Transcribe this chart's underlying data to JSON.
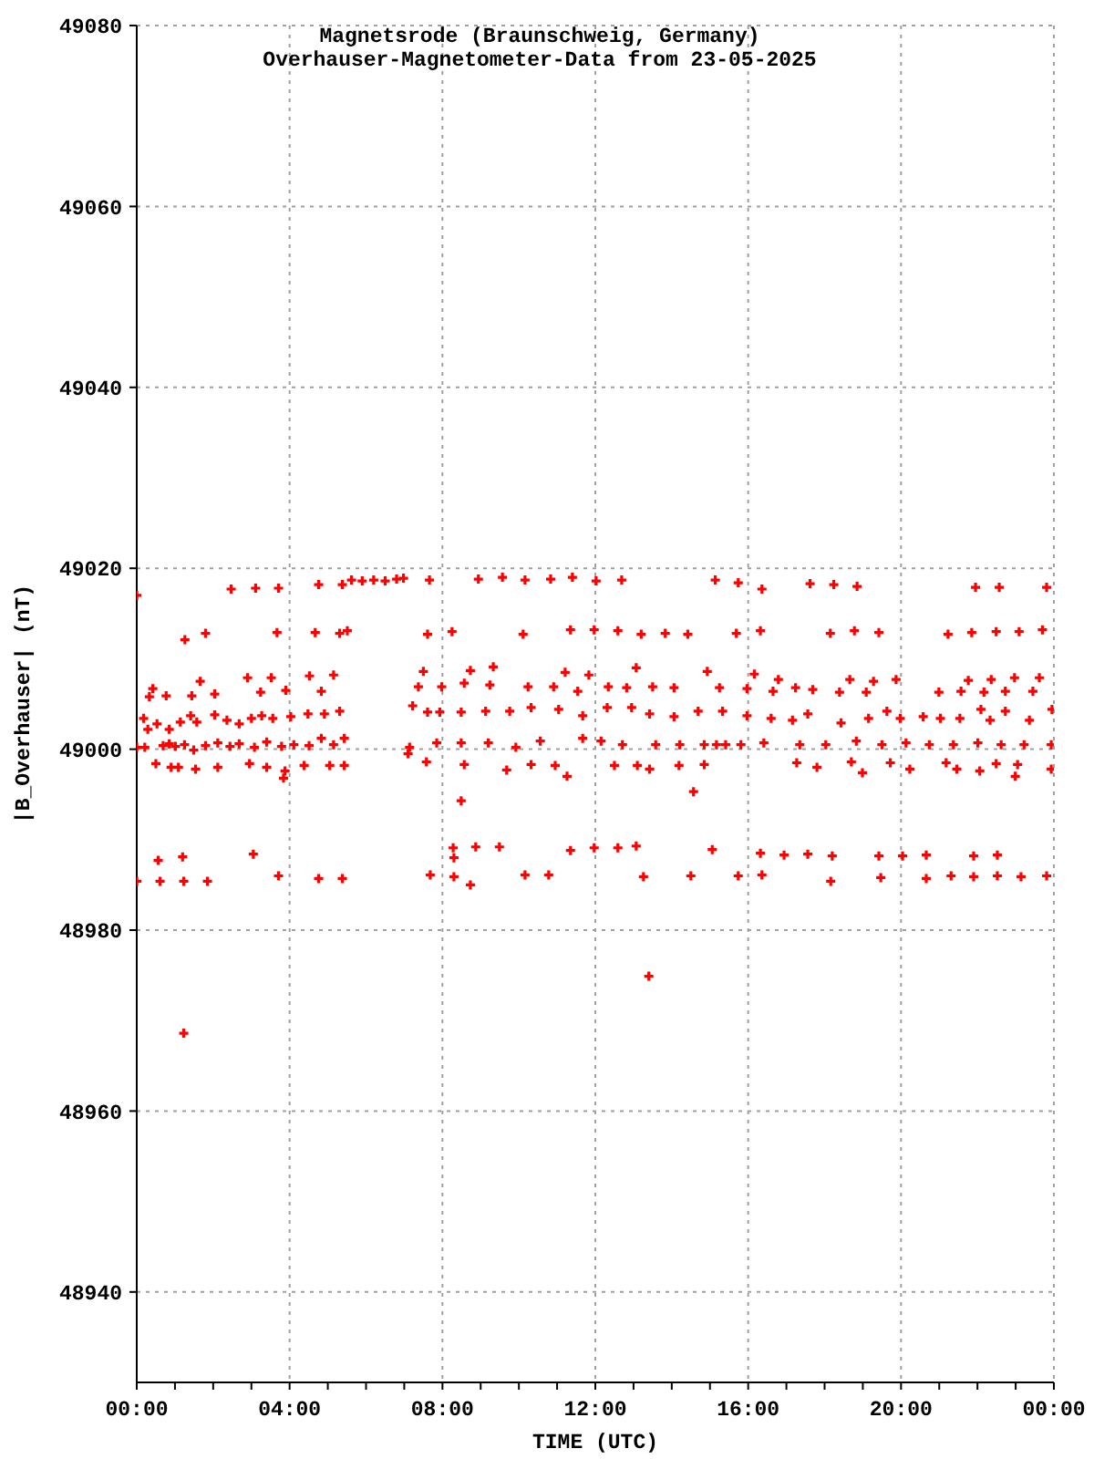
{
  "chart_data": {
    "type": "scatter",
    "title": "Magnetsrode (Braunschweig, Germany)",
    "subtitle": "Overhauser-Magnetometer-Data from 23-05-2025",
    "xlabel": "TIME (UTC)",
    "ylabel": "|B_Overhauser| (nT)",
    "x": [
      0,
      0,
      0,
      0.56,
      0.61,
      1.2,
      1.23,
      1.85,
      3.05,
      3.71,
      4.76,
      5.38,
      2.47,
      3.11,
      3.71,
      4.76,
      5.38,
      5.62,
      5.9,
      6.2,
      6.5,
      6.8,
      1.26,
      1.8,
      3.67,
      4.67,
      5.31,
      5.51,
      0.33,
      0.42,
      0.77,
      1.44,
      1.66,
      2.04,
      2.9,
      3.24,
      3.52,
      3.9,
      4.52,
      4.83,
      5.15,
      0.18,
      0.29,
      0.53,
      0.85,
      1.14,
      1.41,
      1.57,
      2.04,
      2.36,
      2.68,
      3.0,
      3.27,
      3.56,
      4.03,
      4.48,
      4.91,
      5.31,
      5.43,
      0.21,
      0.69,
      0.85,
      1.01,
      1.25,
      1.49,
      1.8,
      2.12,
      2.44,
      2.68,
      3.08,
      3.4,
      3.79,
      4.11,
      4.51,
      4.83,
      5.15,
      0.5,
      0.9,
      1.09,
      1.54,
      2.12,
      2.95,
      3.4,
      3.88,
      4.38,
      5.05,
      5.43,
      3.84,
      1.23,
      13.4,
      7.1,
      6.98,
      7.66,
      8.94,
      9.57,
      10.16,
      10.83,
      11.4,
      12.02,
      12.69,
      15.14,
      7.61,
      8.25,
      10.11,
      11.35,
      11.97,
      12.59,
      13.2,
      13.83,
      14.42,
      7.5,
      7.37,
      7.98,
      8.57,
      8.73,
      9.33,
      9.24,
      10.24,
      10.91,
      11.21,
      11.54,
      11.83,
      12.34,
      13.07,
      12.82,
      13.5,
      14.06,
      14.93,
      15.25,
      7.22,
      7.61,
      7.93,
      8.49,
      9.13,
      9.76,
      10.32,
      11.04,
      11.67,
      12.31,
      12.95,
      13.42,
      14.06,
      14.69,
      15.33,
      7.14,
      7.85,
      8.49,
      9.2,
      9.92,
      10.56,
      11.67,
      12.15,
      12.71,
      13.58,
      14.21,
      14.85,
      15.41,
      7.58,
      8.57,
      9.68,
      10.32,
      10.95,
      11.26,
      12.5,
      13.1,
      13.42,
      14.19,
      14.85,
      14.57,
      8.49,
      8.28,
      8.87,
      9.49,
      11.35,
      11.97,
      12.59,
      13.07,
      15.06,
      8.3,
      7.68,
      8.3,
      8.73,
      10.16,
      10.78,
      13.26,
      14.5,
      15.74,
      16.36,
      17.62,
      18.24,
      18.85,
      21.95,
      22.57,
      23.81,
      15.69,
      16.32,
      18.15,
      18.78,
      19.42,
      21.23,
      21.85,
      22.49,
      23.09,
      23.7,
      16.16,
      15.97,
      16.65,
      16.79,
      17.24,
      17.69,
      18.39,
      18.66,
      19.09,
      19.28,
      19.87,
      20.99,
      21.57,
      21.76,
      22.17,
      22.36,
      22.73,
      22.97,
      23.45,
      23.62,
      15.97,
      16.6,
      17.16,
      17.56,
      18.43,
      19.15,
      19.63,
      19.98,
      20.58,
      21.03,
      21.54,
      22.09,
      22.33,
      22.73,
      23.36,
      23.95,
      15.17,
      15.81,
      16.41,
      17.35,
      18.03,
      18.83,
      19.5,
      20.13,
      20.74,
      21.37,
      22.01,
      22.62,
      23.22,
      23.93,
      17.27,
      17.8,
      18.7,
      18.99,
      19.72,
      20.23,
      21.18,
      21.46,
      22.06,
      22.49,
      22.99,
      23.05,
      23.93,
      16.32,
      16.94,
      17.56,
      18.2,
      19.42,
      20.04,
      20.66,
      21.9,
      22.52,
      15.74,
      16.36,
      18.16,
      19.47,
      20.66,
      21.31,
      21.9,
      22.52,
      23.14,
      23.81
    ],
    "values": [
      49017.0,
      48985.4,
      49000.2,
      48987.7,
      48985.4,
      48988.1,
      48985.4,
      48985.4,
      48988.4,
      48986.0,
      48985.7,
      48985.7,
      49017.7,
      49017.8,
      49017.8,
      49018.2,
      49018.2,
      49018.7,
      49018.6,
      49018.7,
      49018.6,
      49018.8,
      49012.1,
      49012.8,
      49012.9,
      49012.9,
      49012.8,
      49013.1,
      49005.8,
      49006.7,
      49005.9,
      49005.9,
      49007.5,
      49006.1,
      49007.9,
      49006.3,
      49007.9,
      49006.5,
      49008.1,
      49006.4,
      49008.2,
      49003.4,
      49002.2,
      49002.8,
      49002.2,
      49003.0,
      49003.7,
      49003.0,
      49003.8,
      49003.2,
      49002.8,
      49003.4,
      49003.7,
      49003.4,
      49003.6,
      49003.9,
      49003.9,
      49004.2,
      49001.2,
      49000.2,
      49000.4,
      49000.6,
      49000.3,
      49000.5,
      48999.9,
      49000.4,
      49000.7,
      49000.3,
      49000.6,
      49000.2,
      49000.8,
      49000.3,
      49000.5,
      49000.4,
      49001.2,
      49000.5,
      48998.4,
      48998.0,
      48998.0,
      48997.8,
      48998.0,
      48998.4,
      48998.0,
      48997.6,
      48998.2,
      48998.2,
      48998.2,
      48996.8,
      48968.6,
      48974.9,
      48999.5,
      49018.9,
      49018.7,
      49018.8,
      49019.0,
      49018.7,
      49018.8,
      49019.0,
      49018.6,
      49018.7,
      49018.7,
      49012.7,
      49013.0,
      49012.7,
      49013.2,
      49013.2,
      49013.1,
      49012.7,
      49012.8,
      49012.7,
      49008.6,
      49006.9,
      49006.9,
      49007.3,
      49008.7,
      49009.1,
      49007.1,
      49006.9,
      49006.9,
      49008.5,
      49006.4,
      49008.2,
      49006.9,
      49009.0,
      49006.8,
      49006.9,
      49006.8,
      49008.6,
      49006.8,
      49004.8,
      49004.1,
      49004.1,
      49004.1,
      49004.2,
      49004.2,
      49004.6,
      49004.4,
      49003.7,
      49004.6,
      49004.6,
      49003.9,
      49003.6,
      49004.2,
      49004.2,
      49000.2,
      49000.7,
      49000.7,
      49000.7,
      49000.2,
      49000.9,
      49001.2,
      49000.9,
      49000.5,
      49000.5,
      49000.5,
      49000.5,
      49000.5,
      48998.6,
      48998.3,
      48997.7,
      48998.3,
      48998.2,
      48997.0,
      48998.2,
      48998.2,
      48997.8,
      48998.2,
      48998.3,
      48995.3,
      48994.3,
      48989.1,
      48989.2,
      48989.2,
      48988.8,
      48989.1,
      48989.1,
      48989.3,
      48988.9,
      48988.0,
      48986.1,
      48985.9,
      48985.0,
      48986.1,
      48986.1,
      48985.9,
      48986.0,
      49018.4,
      49017.7,
      49018.3,
      49018.2,
      49018.0,
      49017.9,
      49017.9,
      49017.9,
      49012.8,
      49013.1,
      49012.8,
      49013.1,
      49012.9,
      49012.7,
      49012.9,
      49013.0,
      49013.0,
      49013.2,
      49008.3,
      49006.7,
      49006.4,
      49007.7,
      49006.8,
      49006.6,
      49006.3,
      49007.7,
      49006.3,
      49007.5,
      49007.7,
      49006.3,
      49006.4,
      49007.6,
      49006.3,
      49007.7,
      49006.4,
      49007.9,
      49006.4,
      49007.9,
      49003.7,
      49003.4,
      49003.2,
      49003.9,
      49002.9,
      49003.4,
      49004.2,
      49003.4,
      49003.6,
      49003.4,
      49003.4,
      49004.4,
      49003.2,
      49004.2,
      49003.2,
      49004.4,
      49000.5,
      49000.5,
      49000.7,
      49000.5,
      49000.5,
      49000.9,
      49000.5,
      49000.7,
      49000.5,
      49000.5,
      49000.7,
      49000.5,
      49000.5,
      49000.5,
      48998.5,
      48998.0,
      48998.6,
      48997.4,
      48998.5,
      48997.8,
      48998.5,
      48997.8,
      48997.6,
      48998.4,
      48997.0,
      48998.3,
      48997.8,
      48988.5,
      48988.3,
      48988.4,
      48988.2,
      48988.2,
      48988.2,
      48988.3,
      48988.2,
      48988.3,
      48986.0,
      48986.1,
      48985.4,
      48985.8,
      48985.7,
      48986.0,
      48985.9,
      48986.0,
      48985.9,
      48986.0
    ],
    "color": "#ff0000",
    "marker": "cross",
    "xlim": [
      0,
      24
    ],
    "xticks": [
      {
        "value": 0,
        "label": "00:00"
      },
      {
        "value": 1,
        "label": null
      },
      {
        "value": 2,
        "label": null
      },
      {
        "value": 3,
        "label": null
      },
      {
        "value": 4,
        "label": "04:00"
      },
      {
        "value": 5,
        "label": null
      },
      {
        "value": 6,
        "label": null
      },
      {
        "value": 7,
        "label": null
      },
      {
        "value": 8,
        "label": "08:00"
      },
      {
        "value": 9,
        "label": null
      },
      {
        "value": 10,
        "label": null
      },
      {
        "value": 11,
        "label": null
      },
      {
        "value": 12,
        "label": "12:00"
      },
      {
        "value": 13,
        "label": null
      },
      {
        "value": 14,
        "label": null
      },
      {
        "value": 15,
        "label": null
      },
      {
        "value": 16,
        "label": "16:00"
      },
      {
        "value": 17,
        "label": null
      },
      {
        "value": 18,
        "label": null
      },
      {
        "value": 19,
        "label": null
      },
      {
        "value": 20,
        "label": "20:00"
      },
      {
        "value": 21,
        "label": null
      },
      {
        "value": 22,
        "label": null
      },
      {
        "value": 23,
        "label": null
      },
      {
        "value": 24,
        "label": "00:00"
      }
    ],
    "ylim": [
      48930,
      49080
    ],
    "yticks": [
      48940,
      48960,
      48980,
      49000,
      49020,
      49040,
      49060,
      49080
    ],
    "grid": true
  }
}
